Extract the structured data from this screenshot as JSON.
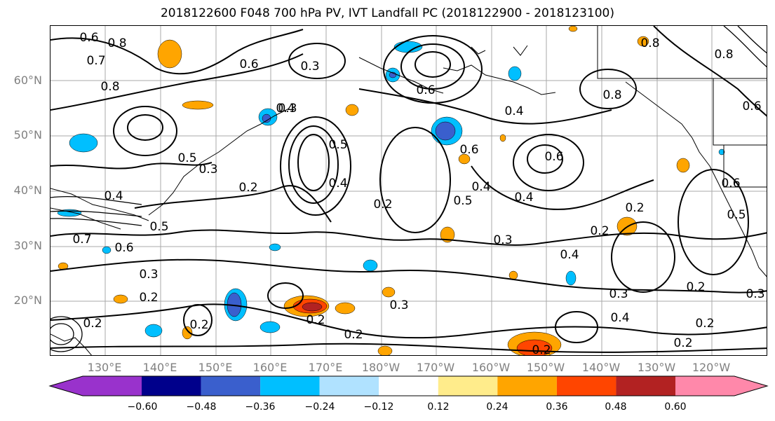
{
  "title": "2018122600 F048 700 hPa PV, IVT Landfall PC (2018122900 - 2018123100)",
  "lat_labels": [
    "60°N",
    "50°N",
    "40°N",
    "30°N",
    "20°N"
  ],
  "lon_labels": [
    "130°E",
    "140°E",
    "150°E",
    "160°E",
    "170°E",
    "180°W",
    "170°W",
    "160°W",
    "150°W",
    "140°W",
    "130°W",
    "120°W"
  ],
  "contour_labels": [
    "0.6",
    "0.8",
    "0.7",
    "0.6",
    "0.8",
    "0.5",
    "0.3",
    "0.4",
    "0.5",
    "0.3",
    "0.4",
    "0.7",
    "0.6",
    "0.5",
    "0.3",
    "0.2",
    "0.2",
    "0.3",
    "0.2",
    "0.2",
    "0.3",
    "0.4",
    "0.6",
    "0.2",
    "0.6",
    "0.3",
    "0.8",
    "0.6",
    "0.4",
    "0.4",
    "0.5",
    "0.3",
    "0.4",
    "0.2",
    "0.4",
    "0.6",
    "0.2",
    "0.2",
    "0.8",
    "0.6",
    "0.8",
    "0.2",
    "0.4",
    "0.2",
    "0.2",
    "0.3",
    "0.2",
    "0.2",
    "0.5"
  ],
  "colorbar": {
    "ticks": [
      "−0.60",
      "−0.48",
      "−0.36",
      "−0.24",
      "−0.12",
      "0.12",
      "0.24",
      "0.36",
      "0.48",
      "0.60"
    ],
    "colors": [
      "#9932CC",
      "#00008B",
      "#3A5FCD",
      "#00BFFF",
      "#B0E2FF",
      "#FFFFFF",
      "#FFEC8B",
      "#FFA500",
      "#FF4500",
      "#B22222",
      "#FF88AA"
    ]
  }
}
